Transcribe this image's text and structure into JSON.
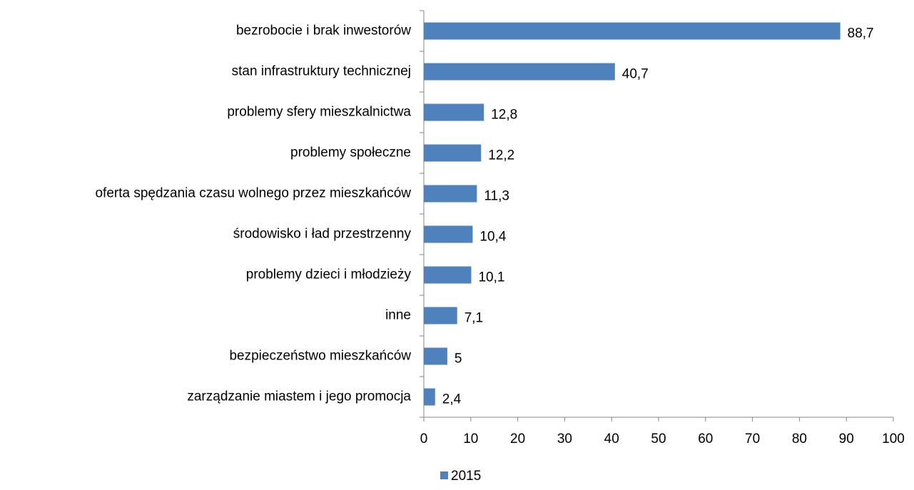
{
  "chart_data": {
    "type": "bar",
    "orientation": "horizontal",
    "categories": [
      "bezrobocie i brak inwestorów",
      "stan infrastruktury technicznej",
      "problemy sfery mieszkalnictwa",
      "problemy społeczne",
      "oferta spędzania czasu wolnego przez mieszkańców",
      "środowisko i ład przestrzenny",
      "problemy dzieci i młodzieży",
      "inne",
      "bezpieczeństwo mieszkańców",
      "zarządzanie miastem i jego promocja"
    ],
    "series": [
      {
        "name": "2015",
        "color": "#4f81bd",
        "values": [
          88.7,
          40.7,
          12.8,
          12.2,
          11.3,
          10.4,
          10.1,
          7.1,
          5,
          2.4
        ],
        "value_labels": [
          "88,7",
          "40,7",
          "12,8",
          "12,2",
          "11,3",
          "10,4",
          "10,1",
          "7,1",
          "5",
          "2,4"
        ]
      }
    ],
    "xlim": [
      0,
      100
    ],
    "xticks": [
      0,
      10,
      20,
      30,
      40,
      50,
      60,
      70,
      80,
      90,
      100
    ],
    "grid": false,
    "legend": "bottom"
  }
}
